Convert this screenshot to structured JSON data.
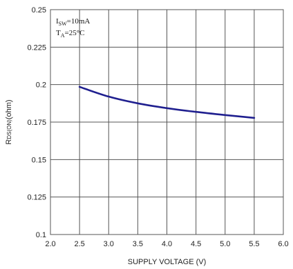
{
  "chart_data": {
    "type": "line",
    "xlabel": "SUPPLY VOLTAGE (V)",
    "ylabel": {
      "main": "R",
      "sub": "DS(ON)",
      "tail": "(ohm)"
    },
    "xlim": [
      2.0,
      6.0
    ],
    "ylim": [
      0.1,
      0.25
    ],
    "x_ticks": [
      "2.0",
      "2.5",
      "3.0",
      "3.5",
      "4.0",
      "4.5",
      "5.0",
      "5.5",
      "6.0"
    ],
    "y_ticks": [
      "0.1",
      "0.125",
      "0.15",
      "0.175",
      "0.2",
      "0.225",
      "0.25"
    ],
    "grid": true,
    "annotations": [
      {
        "main": "I",
        "sub": "SW",
        "tail": "=10mA"
      },
      {
        "main": "T",
        "sub": "A",
        "tail": "=25°C"
      }
    ],
    "series": [
      {
        "color": "#1f1f8f",
        "x": [
          2.5,
          3.0,
          3.5,
          4.0,
          4.5,
          5.0,
          5.5
        ],
        "y": [
          0.1985,
          0.192,
          0.1875,
          0.1843,
          0.1818,
          0.1797,
          0.1778
        ]
      }
    ]
  }
}
